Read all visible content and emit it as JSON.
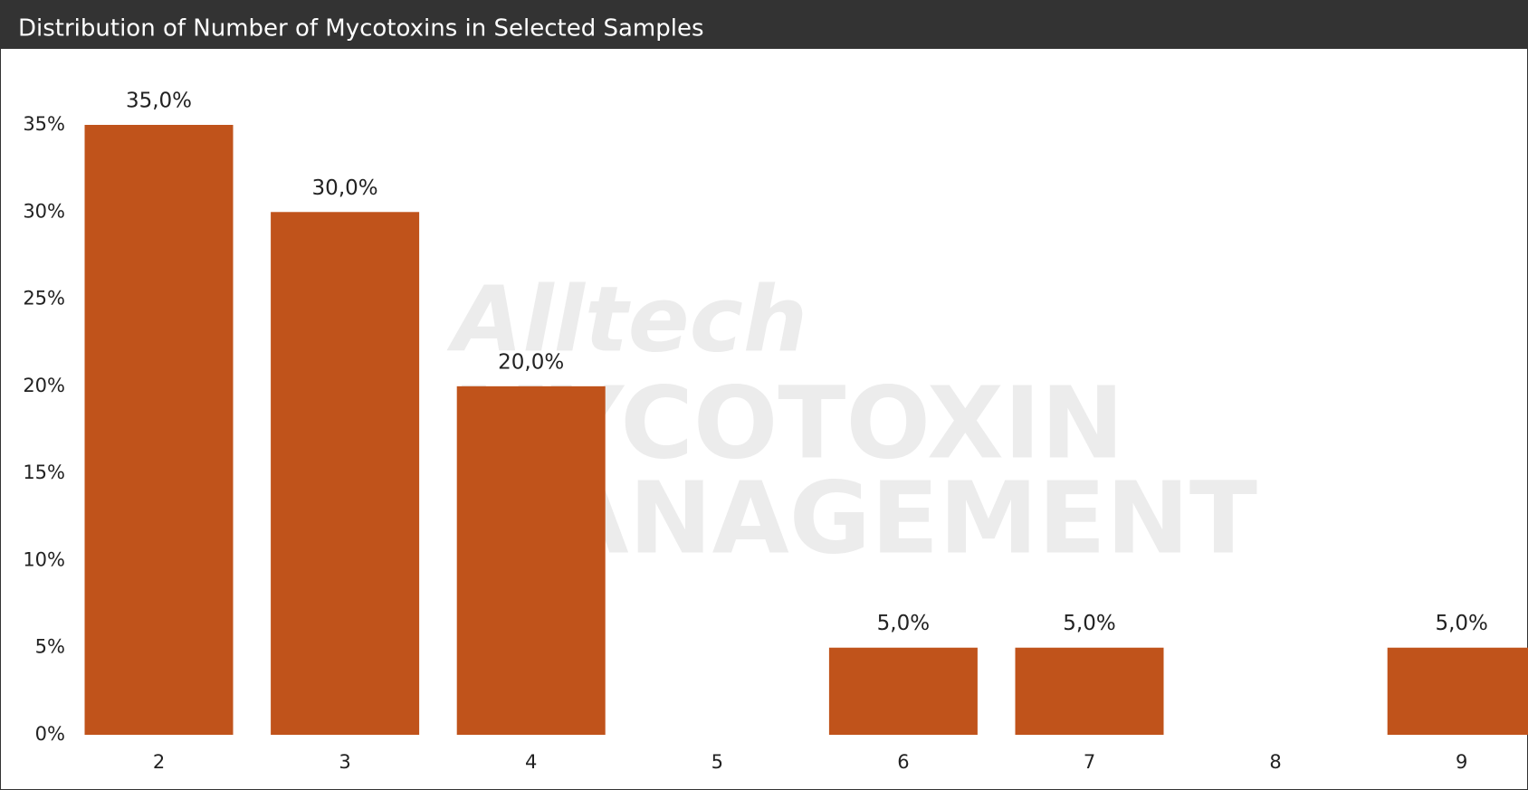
{
  "chart_data": {
    "type": "bar",
    "title": "Distribution of Number of Mycotoxins in Selected Samples",
    "watermark": [
      "Alltech",
      "MYCOTOXIN",
      "MANAGEMENT"
    ],
    "categories": [
      "2",
      "3",
      "4",
      "5",
      "6",
      "7",
      "8",
      "9"
    ],
    "values": [
      35,
      30,
      20,
      0,
      5,
      5,
      0,
      5
    ],
    "value_labels": [
      "35,0%",
      "30,0%",
      "20,0%",
      null,
      "5,0%",
      "5,0%",
      null,
      "5,0%"
    ],
    "color": "#c0531b",
    "ylim": [
      0,
      35
    ],
    "yticks": [
      {
        "value": 0,
        "label": "0%"
      },
      {
        "value": 5,
        "label": "5%"
      },
      {
        "value": 10,
        "label": "10%"
      },
      {
        "value": 15,
        "label": "15%"
      },
      {
        "value": 20,
        "label": "20%"
      },
      {
        "value": 25,
        "label": "25%"
      },
      {
        "value": 30,
        "label": "30%"
      },
      {
        "value": 35,
        "label": "35%"
      }
    ],
    "grid": false
  }
}
